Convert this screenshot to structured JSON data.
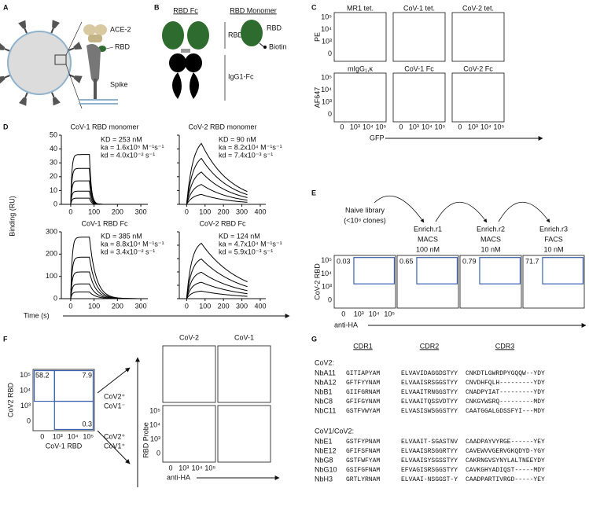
{
  "panel_labels": [
    "A",
    "B",
    "C",
    "D",
    "E",
    "F",
    "G"
  ],
  "a": {
    "ace2": "ACE-2",
    "rbd": "RBD",
    "spike": "Spike"
  },
  "b": {
    "rbd_fc": "RBD Fc",
    "rbd_monomer": "RBD Monomer",
    "fc_rbd": "RBD",
    "fc_igg": "IgG1-Fc",
    "mono_rbd": "RBD",
    "mono_biotin": "Biotin"
  },
  "c": {
    "titles": [
      "MR1 tet.",
      "CoV-1 tet.",
      "CoV-2 tet.",
      "mIgG₁,κ",
      "CoV-1 Fc",
      "CoV-2 Fc"
    ],
    "ylabels": [
      "PE",
      "AF647"
    ],
    "xlabel": "GFP",
    "yticks": [
      "10⁵",
      "10⁴",
      "10³",
      "0"
    ],
    "xticks": [
      "0",
      "10³",
      "10⁴",
      "10⁵"
    ]
  },
  "d": {
    "ylabel": "Binding (RU)",
    "xlabel": "Time (s)",
    "plots": [
      {
        "title": "CoV-1 RBD monomer",
        "kd_eq": "KD = 253 nM",
        "ka": "ka = 1.6x10⁵ M⁻¹s⁻¹",
        "koff": "kd = 4.0x10⁻² s⁻¹",
        "yticks": [
          "0",
          "10",
          "20",
          "30",
          "40",
          "50"
        ],
        "xticks": [
          "0",
          "100",
          "200",
          "300"
        ]
      },
      {
        "title": "CoV-2 RBD monomer",
        "kd_eq": "KD = 90 nM",
        "ka": "ka = 8.2x10⁴ M⁻¹s⁻¹",
        "koff": "kd = 7.4x10⁻³ s⁻¹",
        "xticks": [
          "0",
          "100",
          "200",
          "300",
          "400"
        ]
      },
      {
        "title": "CoV-1 RBD Fc",
        "kd_eq": "KD = 385 nM",
        "ka": "ka = 8.8x10⁴ M⁻¹s⁻¹",
        "koff": "kd = 3.4x10⁻² s⁻¹",
        "yticks": [
          "0",
          "100",
          "200",
          "300"
        ],
        "xticks": [
          "0",
          "100",
          "200",
          "300"
        ]
      },
      {
        "title": "CoV-2 RBD Fc",
        "kd_eq": "KD = 124 nM",
        "ka": "ka = 4.7x10⁴ M⁻¹s⁻¹",
        "koff": "kd = 5.9x10⁻³ s⁻¹",
        "xticks": [
          "0",
          "100",
          "200",
          "300",
          "400"
        ]
      }
    ]
  },
  "e": {
    "steps": [
      [
        "Naive library",
        "(<10⁸ clones)"
      ],
      [
        "Enrich.r1",
        "MACS",
        "100 nM"
      ],
      [
        "Enrich.r2",
        "MACS",
        "10 nM"
      ],
      [
        "Enrich.r3",
        "FACS",
        "10 nM"
      ]
    ],
    "percents": [
      "0.03",
      "0.65",
      "0.79",
      "71.7"
    ],
    "ylabel": "CoV-2 RBD",
    "xlabel": "anti-HA",
    "yticks": [
      "10⁵",
      "10⁴",
      "10³",
      "0"
    ],
    "xticks": [
      "0",
      "10³",
      "10⁴",
      "10⁵"
    ]
  },
  "f": {
    "ylabel": "CoV2 RBD",
    "xlabel": "CoV-1 RBD",
    "quadrants": [
      "58.2",
      "7.9",
      "0.3"
    ],
    "gates": [
      [
        "CoV2⁺",
        "CoV1⁻"
      ],
      [
        "CoV2⁺",
        "CoV1⁺"
      ]
    ],
    "columns": [
      "CoV-2",
      "CoV-1"
    ],
    "ylabel2": "RBD Probe",
    "xlabel2": "anti-HA",
    "yticks": [
      "10⁵",
      "10⁴",
      "10³",
      "0"
    ],
    "xticks": [
      "0",
      "10³",
      "10⁴",
      "10⁵"
    ]
  },
  "g": {
    "headers": [
      "CDR1",
      "CDR2",
      "CDR3"
    ],
    "groups": [
      {
        "label": "CoV2:",
        "rows": [
          [
            "NbA11",
            "GITIAPYAM",
            "ELVAVIDAGGDSTYY",
            "CNKDTLGWRDPYGQQW--YDY"
          ],
          [
            "NbA12",
            "GFTFYYNAM",
            "ELVAAISRSGGSTYY",
            "CNVDHFQLH---------YDY"
          ],
          [
            "NbB1",
            "GIIFGRNAM",
            "ELVAAITRNGGSTYY",
            "CNADPYIAT---------YDY"
          ],
          [
            "NbC8",
            "GFIFGYNAM",
            "ELVAAITQSSVDTYY",
            "CNKGYWSRQ---------MDY"
          ],
          [
            "NbC11",
            "GSTFVWYAM",
            "ELVASISWSGGSTYY",
            "CAATGGALGDSSFYI---MDY"
          ]
        ]
      },
      {
        "label": "CoV1/CoV2:",
        "rows": [
          [
            "NbE1",
            "GSTFYPNAM",
            "ELVAAIT-SGASTNV",
            "CAADPAYVYRGE------YEY"
          ],
          [
            "NbE12",
            "GFIFSFNAM",
            "ELVAAISRSGGRTYY",
            "CAVEWVVGERVGKQDYD-YGY"
          ],
          [
            "NbG8",
            "GSTFWFYAM",
            "ELVAAISYSGSSTYY",
            "CAKRNGVSYNYLALTNEEYDY"
          ],
          [
            "NbG10",
            "GSIFGFNAM",
            "EFVAGISRSGGSTYY",
            "CAVKGHYADIQST-----MDY"
          ],
          [
            "NbH3",
            "GRTLYRNAM",
            "ELVAAI-NSGGST-Y",
            "CAADPARTIVRGD-----YEY"
          ]
        ]
      }
    ]
  }
}
